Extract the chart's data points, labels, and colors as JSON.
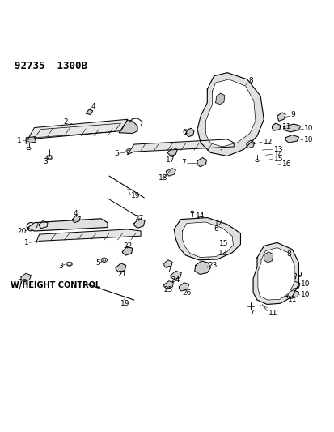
{
  "title": "92735  1300B",
  "background_color": "#ffffff",
  "line_color": "#000000",
  "text_color": "#000000",
  "fig_width": 4.14,
  "fig_height": 5.33,
  "dpi": 100,
  "bottom_label": "W/HEIGHT CONTROL"
}
